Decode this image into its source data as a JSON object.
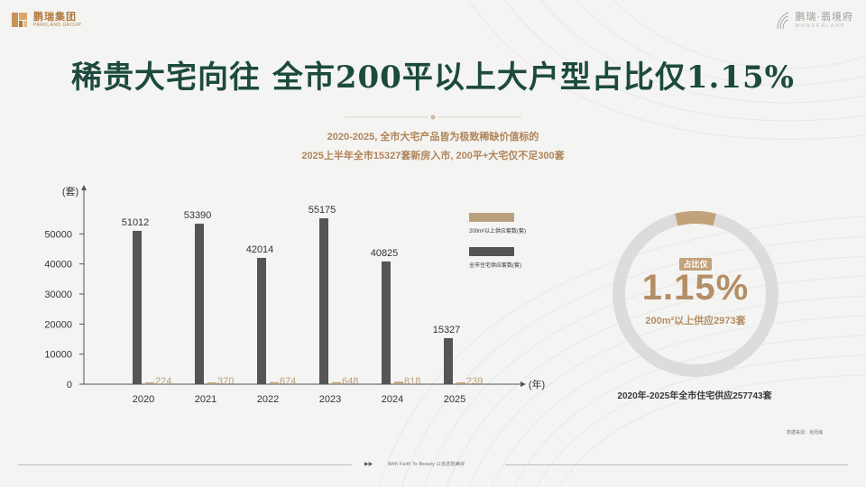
{
  "logo_left": {
    "cn": "鹏瑞集团",
    "en": "PARKLAND GROUP"
  },
  "logo_right": {
    "cn": "鹏瑞·翡境府",
    "en": "WONDERLAND"
  },
  "title": "稀贵大宅向往 全市200平以上大户型占比仅1.15%",
  "subtitle_line1": "2020-2025, 全市大宅产品皆为极致稀缺价值标的",
  "subtitle_line2": "2025上半年全市15327套新房入市, 200平+大宅仅不足300套",
  "chart_data": {
    "type": "bar",
    "ylabel": "(套)",
    "xlabel": "(年)",
    "ylim": [
      0,
      60000
    ],
    "yticks": [
      0,
      10000,
      20000,
      30000,
      40000,
      50000
    ],
    "categories": [
      "2020",
      "2021",
      "2022",
      "2023",
      "2024",
      "2025"
    ],
    "series": [
      {
        "name": "全市住宅供应套数(套)",
        "color": "#555555",
        "values": [
          51012,
          53390,
          42014,
          55175,
          40825,
          15327
        ]
      },
      {
        "name": "200m²以上供应套数(套)",
        "color": "#b8a07e",
        "values": [
          224,
          370,
          674,
          648,
          818,
          239
        ]
      }
    ]
  },
  "ring": {
    "badge": "占比仅",
    "value": "1.15%",
    "fraction": 0.0115,
    "sub": "200m²以上供应2973套",
    "caption": "2020年-2025年全市住宅供应257743套",
    "track_color": "#dcdcda",
    "accent_color": "#c2a27a"
  },
  "source": "数据来源：克而瑞",
  "footer": "With Faith To Beauty 以信念抵美好"
}
